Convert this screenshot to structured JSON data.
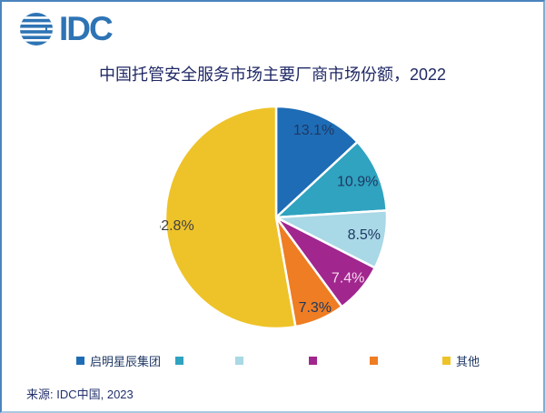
{
  "logo": {
    "text": "IDC",
    "icon": "globe-stripes-icon",
    "color": "#2e74b5"
  },
  "title": "中国托管安全服务市场主要厂商市场份额，2022",
  "source": "来源: IDC中国, 2023",
  "colors": {
    "frame_border": "#4a84bd",
    "title_text": "#212a66",
    "legend_text": "#1f3864"
  },
  "chart_data": {
    "type": "pie",
    "title": "中国托管安全服务市场主要厂商市场份额，2022",
    "unit": "%",
    "start_angle_deg": 0,
    "direction": "clockwise",
    "legend_position": "bottom",
    "slices": [
      {
        "label": "启明星辰集团",
        "value": 13.1,
        "color": "#1e6cb5",
        "label_color": "#1f3864"
      },
      {
        "label": "",
        "value": 10.9,
        "color": "#2fa3bf",
        "label_color": "#1f3864"
      },
      {
        "label": "",
        "value": 8.5,
        "color": "#a9d8e6",
        "label_color": "#1f3864"
      },
      {
        "label": "",
        "value": 7.4,
        "color": "#a1268e",
        "label_color": "#f7d9ef"
      },
      {
        "label": "",
        "value": 7.3,
        "color": "#ee7d23",
        "label_color": "#1f3864"
      },
      {
        "label": "其他",
        "value": 52.8,
        "color": "#eec329",
        "label_color": "#404040"
      }
    ]
  }
}
